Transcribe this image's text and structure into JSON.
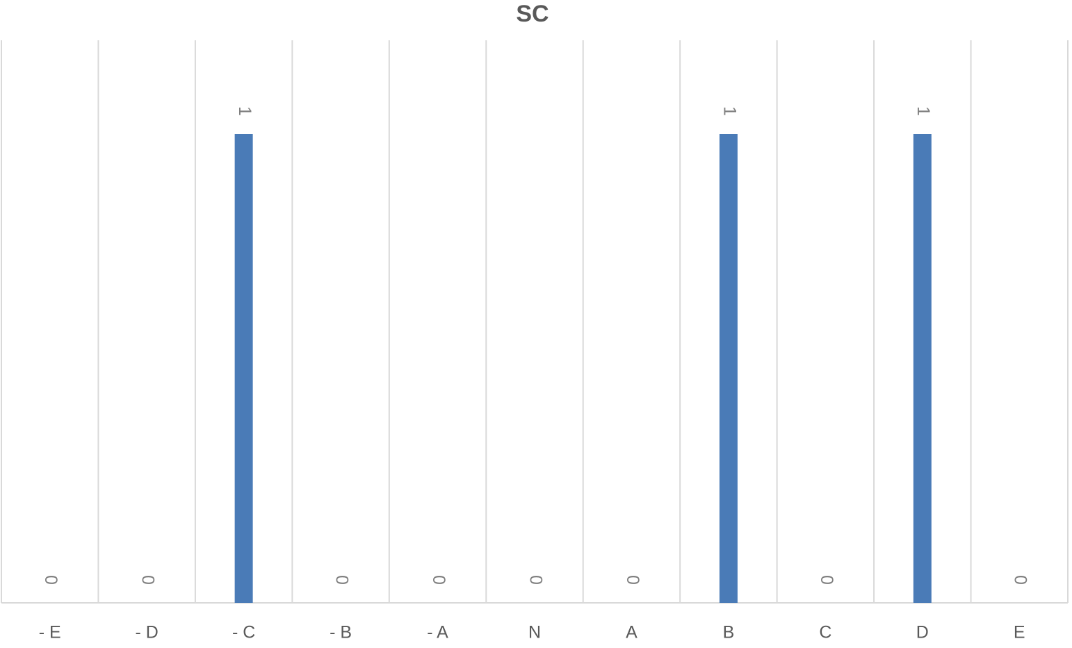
{
  "chart_data": {
    "type": "bar",
    "title": "SC",
    "categories": [
      "- E",
      "- D",
      "- C",
      "- B",
      "- A",
      "N",
      "A",
      "B",
      "C",
      "D",
      "E"
    ],
    "values": [
      0,
      0,
      1,
      0,
      0,
      0,
      0,
      1,
      0,
      1,
      0
    ],
    "color": "#4a7bb7",
    "ylim": [
      0,
      1.2
    ],
    "grid": true,
    "data_labels": true
  }
}
